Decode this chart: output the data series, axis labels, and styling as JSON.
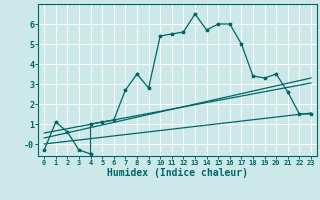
{
  "title": "",
  "xlabel": "Humidex (Indice chaleur)",
  "bg_color": "#cce8e8",
  "grid_color": "#ffffff",
  "line_color": "#006666",
  "xlim": [
    -0.5,
    23.5
  ],
  "ylim": [
    -0.6,
    7.0
  ],
  "yticks": [
    0,
    1,
    2,
    3,
    4,
    5,
    6
  ],
  "ytick_labels": [
    "-0",
    "1",
    "2",
    "3",
    "4",
    "5",
    "6"
  ],
  "xticks": [
    0,
    1,
    2,
    3,
    4,
    5,
    6,
    7,
    8,
    9,
    10,
    11,
    12,
    13,
    14,
    15,
    16,
    17,
    18,
    19,
    20,
    21,
    22,
    23
  ],
  "series1_x": [
    0,
    1,
    2,
    3,
    4,
    4,
    5,
    6,
    7,
    8,
    9,
    10,
    11,
    12,
    13,
    14,
    15,
    16,
    17,
    18,
    19,
    20,
    21,
    22,
    23
  ],
  "series1_y": [
    -0.3,
    1.1,
    0.6,
    -0.3,
    -0.5,
    1.0,
    1.1,
    1.2,
    2.7,
    3.5,
    2.8,
    5.4,
    5.5,
    5.6,
    6.5,
    5.7,
    6.0,
    6.0,
    5.0,
    3.4,
    3.3,
    3.5,
    2.6,
    1.5,
    1.5
  ],
  "series2_x": [
    0,
    23
  ],
  "series2_y": [
    0.3,
    3.3
  ],
  "series3_x": [
    0,
    23
  ],
  "series3_y": [
    0.0,
    1.55
  ],
  "series4_x": [
    0,
    23
  ],
  "series4_y": [
    0.55,
    3.05
  ]
}
